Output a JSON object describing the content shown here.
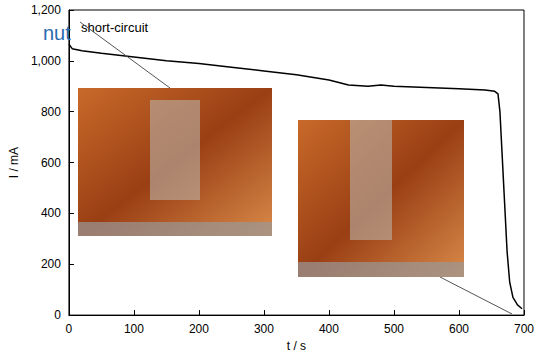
{
  "chart_data": {
    "type": "line",
    "title": "nut",
    "annotation": "short-circuit",
    "x_label": "t / s",
    "y_label": "I / mA",
    "color": "#000000",
    "x": [
      0,
      5,
      20,
      50,
      100,
      150,
      200,
      250,
      300,
      350,
      400,
      430,
      460,
      480,
      500,
      550,
      600,
      640,
      655,
      660,
      663,
      666,
      670,
      674,
      678,
      683,
      690,
      697
    ],
    "values": [
      1065,
      1048,
      1040,
      1030,
      1015,
      1000,
      990,
      975,
      960,
      945,
      925,
      905,
      900,
      905,
      900,
      895,
      890,
      885,
      880,
      870,
      800,
      650,
      450,
      250,
      130,
      70,
      40,
      25
    ],
    "xlim": [
      0,
      700
    ],
    "xticks": [
      0,
      100,
      200,
      300,
      400,
      500,
      600,
      700
    ],
    "ylim": [
      0,
      1200
    ],
    "yticks": [
      0,
      200,
      400,
      600,
      800,
      1000,
      1200
    ],
    "grid": false
  }
}
